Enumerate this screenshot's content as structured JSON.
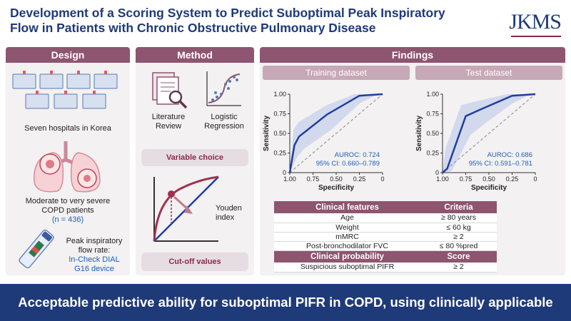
{
  "header": {
    "title_line1": "Development of a Scoring System to Predict Suboptimal Peak Inspiratory",
    "title_line2": "Flow in Patients with Chronic Obstructive Pulmonary Disease",
    "logo": "JKMS"
  },
  "design": {
    "heading": "Design",
    "hospitals_caption": "Seven hospitals in Korea",
    "patients_line1": "Moderate to very severe",
    "patients_line2": "COPD patients",
    "patients_n": "(n = 436)",
    "device_line1": "Peak inspiratory",
    "device_line2": "flow rate:",
    "device_line3": "In-Check DIAL",
    "device_line4": "G16 device"
  },
  "method": {
    "heading": "Method",
    "lit_line1": "Literature",
    "lit_line2": "Review",
    "log_line1": "Logistic",
    "log_line2": "Regression",
    "variable_choice": "Variable choice",
    "youden_line1": "Youden",
    "youden_line2": "index",
    "cutoff": "Cut-off values"
  },
  "findings": {
    "heading": "Findings",
    "training_label": "Training dataset",
    "test_label": "Test dataset"
  },
  "chart_data": [
    {
      "type": "line",
      "title": "Training dataset",
      "xlabel": "Specificity",
      "ylabel": "Sensitivity",
      "xticks": [
        "1.00",
        "0.75",
        "0.50",
        "0.25",
        "0"
      ],
      "yticks": [
        "1.00",
        "0.75",
        "0.50",
        "0.25",
        "0"
      ],
      "xlim": [
        1,
        0
      ],
      "ylim": [
        0,
        1
      ],
      "series": [
        {
          "name": "ROC",
          "x": [
            1.0,
            0.95,
            0.9,
            0.6,
            0.25,
            0.0
          ],
          "y": [
            0.0,
            0.35,
            0.46,
            0.74,
            0.98,
            1.0
          ]
        },
        {
          "name": "CI upper",
          "x": [
            1.0,
            0.96,
            0.9,
            0.6,
            0.3,
            0.0
          ],
          "y": [
            0.0,
            0.55,
            0.65,
            0.86,
            1.0,
            1.0
          ]
        },
        {
          "name": "CI lower",
          "x": [
            1.0,
            0.92,
            0.85,
            0.55,
            0.25,
            0.1,
            0.0
          ],
          "y": [
            0.0,
            0.2,
            0.3,
            0.55,
            0.88,
            0.97,
            1.0
          ]
        }
      ],
      "reference_line": "diagonal",
      "annotation_auroc": "AUROC: 0.724",
      "annotation_ci": "95% CI: 0.660–0.789"
    },
    {
      "type": "line",
      "title": "Test dataset",
      "xlabel": "Specificity",
      "ylabel": "Sensitivity",
      "xticks": [
        "1.00",
        "0.75",
        "0.50",
        "0.25",
        "0"
      ],
      "yticks": [
        "1.00",
        "0.75",
        "0.50",
        "0.25",
        "0"
      ],
      "xlim": [
        1,
        0
      ],
      "ylim": [
        0,
        1
      ],
      "series": [
        {
          "name": "ROC",
          "x": [
            1.0,
            0.95,
            0.75,
            0.6,
            0.25,
            0.0
          ],
          "y": [
            0.0,
            0.05,
            0.72,
            0.8,
            0.98,
            1.0
          ]
        },
        {
          "name": "CI upper",
          "x": [
            1.0,
            0.97,
            0.8,
            0.6,
            0.3,
            0.0
          ],
          "y": [
            0.0,
            0.3,
            0.86,
            0.92,
            1.0,
            1.0
          ]
        },
        {
          "name": "CI lower",
          "x": [
            1.0,
            0.9,
            0.7,
            0.55,
            0.25,
            0.1,
            0.0
          ],
          "y": [
            0.0,
            0.02,
            0.48,
            0.62,
            0.88,
            0.97,
            1.0
          ]
        }
      ],
      "reference_line": "diagonal",
      "annotation_auroc": "AUROC: 0.686",
      "annotation_ci": "95% CI: 0.591–0.781"
    }
  ],
  "table": {
    "header": [
      "Clinical features",
      "Criteria"
    ],
    "rows": [
      [
        "Age",
        "≥ 80 years"
      ],
      [
        "Weight",
        "≤ 60 kg"
      ],
      [
        "mMRC",
        "≥ 2"
      ],
      [
        "Post-bronchodilator FVC",
        "≤ 80 %pred"
      ]
    ],
    "header2": [
      "Clinical probability",
      "Score"
    ],
    "rows2": [
      [
        "Suspicious suboptimal PIFR",
        "≥ 2"
      ]
    ]
  },
  "conclusion": "Acceptable predictive ability for suboptimal PIFR in COPD, using clinically applicable variables",
  "colors": {
    "accent": "#8e5570",
    "navy": "#1f3a78",
    "roc": "#1f3fa0",
    "ci_band": "#c9d3ea"
  }
}
